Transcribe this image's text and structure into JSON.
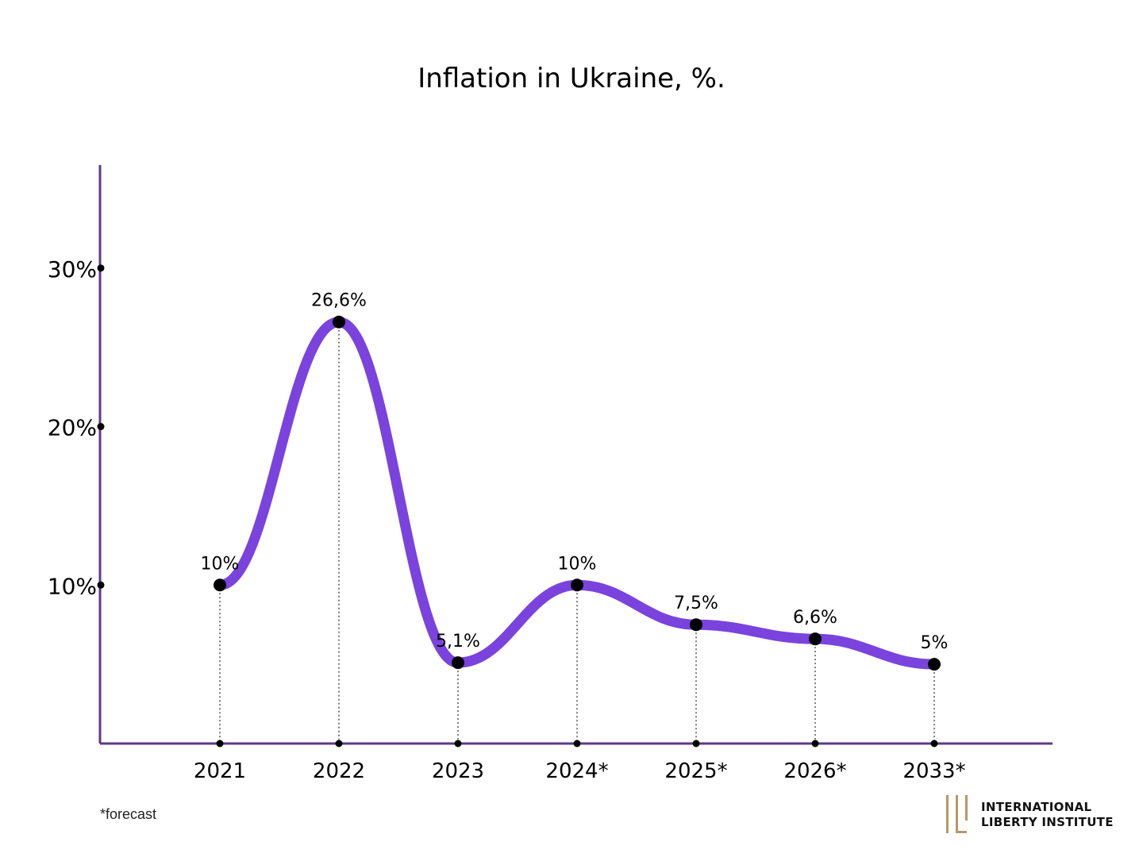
{
  "chart_data": {
    "type": "line",
    "title": "Inflation in Ukraine, %.",
    "categories": [
      "2021",
      "2022",
      "2023",
      "2024*",
      "2025*",
      "2026*",
      "2033*"
    ],
    "values": [
      10,
      26.6,
      5.1,
      10,
      7.5,
      6.6,
      5
    ],
    "data_labels": [
      "10%",
      "26,6%",
      "5,1%",
      "10%",
      "7,5%",
      "6,6%",
      "5%"
    ],
    "yticks": [
      {
        "value": 10,
        "label": "10%"
      },
      {
        "value": 20,
        "label": "20%"
      },
      {
        "value": 30,
        "label": "30%"
      }
    ],
    "ylim": [
      0,
      36.5
    ],
    "line_color": "#7a43dd",
    "axis_color": "#5c3a86",
    "marker_color": "#000000",
    "smooth": true,
    "grid": false,
    "footnote": "*forecast"
  },
  "logo": {
    "line1": "International",
    "line2": "Liberty Institute",
    "color": "#b8976a"
  }
}
